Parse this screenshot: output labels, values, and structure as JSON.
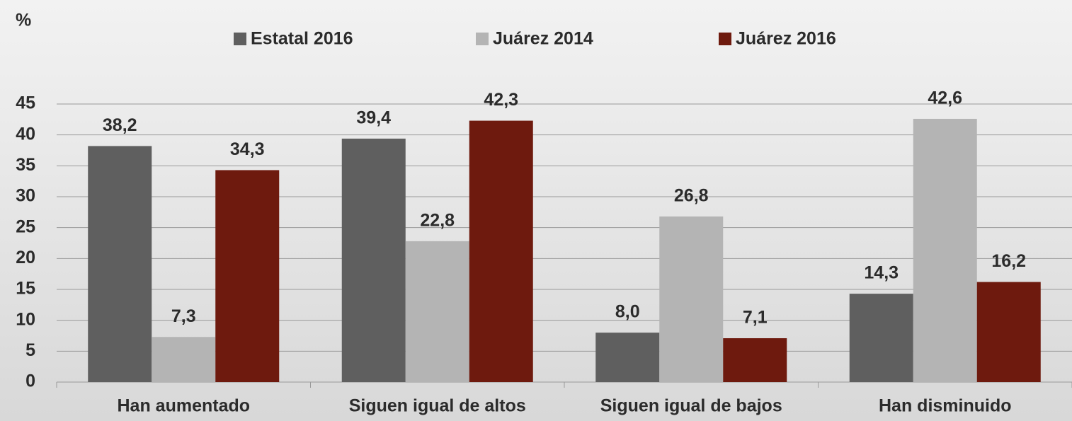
{
  "chart_data": {
    "type": "bar",
    "y_label": "%",
    "categories": [
      "Han aumentado",
      "Siguen igual de altos",
      "Siguen igual de bajos",
      "Han disminuido"
    ],
    "series": [
      {
        "name": "Estatal 2016",
        "color": "#5f5f5f",
        "values": [
          38.2,
          39.4,
          8.0,
          14.3
        ],
        "value_labels": [
          "38,2",
          "39,4",
          "8,0",
          "14,3"
        ]
      },
      {
        "name": "Juárez 2014",
        "color": "#b4b4b4",
        "values": [
          7.3,
          22.8,
          26.8,
          42.6
        ],
        "value_labels": [
          "7,3",
          "22,8",
          "26,8",
          "42,6"
        ]
      },
      {
        "name": "Juárez 2016",
        "color": "#6e1a0e",
        "values": [
          34.3,
          42.3,
          7.1,
          16.2
        ],
        "value_labels": [
          "34,3",
          "42,3",
          "7,1",
          "16,2"
        ]
      }
    ],
    "ylim": [
      0,
      45
    ],
    "yticks": [
      0,
      5,
      10,
      15,
      20,
      25,
      30,
      35,
      40,
      45
    ],
    "grid": true,
    "legend": "top"
  }
}
